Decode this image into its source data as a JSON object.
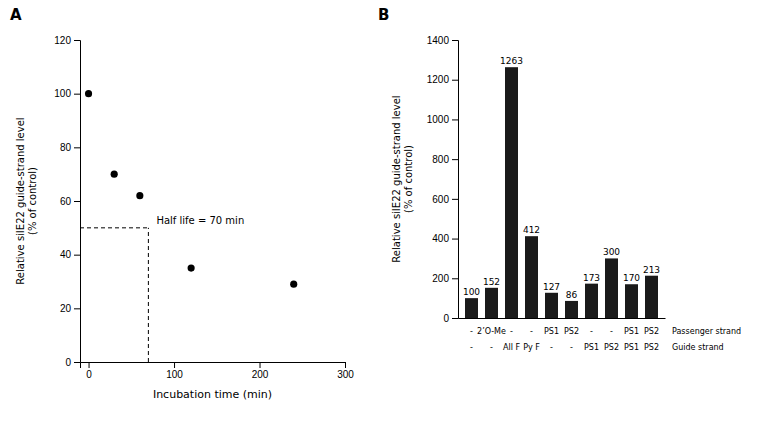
{
  "chart_data": [
    {
      "type": "scatter",
      "title": "A",
      "x": [
        0,
        30,
        60,
        120,
        240
      ],
      "values": [
        100,
        70,
        62,
        35,
        29
      ],
      "xlim": [
        -10,
        300
      ],
      "xticks": [
        0,
        100,
        200,
        300
      ],
      "ylim": [
        0,
        120
      ],
      "yticks": [
        0,
        20,
        40,
        60,
        80,
        100,
        120
      ],
      "xlabel": "Incubation time (min)",
      "ylabel": "Relative siIE22 guide-strand level\n(% of control)",
      "marker": "circle",
      "color": "#000000",
      "annotations": [
        {
          "text": "Half life = 70 min",
          "x": 70,
          "y": 50
        }
      ]
    },
    {
      "type": "bar",
      "title": "B",
      "categories": [
        [
          "-",
          "-"
        ],
        [
          "2’O-Me",
          "-"
        ],
        [
          "-",
          "All F"
        ],
        [
          "-",
          "Py F"
        ],
        [
          "PS1",
          "-"
        ],
        [
          "PS2",
          "-"
        ],
        [
          "-",
          "PS1"
        ],
        [
          "-",
          "PS2"
        ],
        [
          "PS1",
          "PS1"
        ],
        [
          "PS2",
          "PS2"
        ]
      ],
      "category_titles": [
        "Passenger strand",
        "Guide strand"
      ],
      "values": [
        100,
        152,
        1263,
        412,
        127,
        86,
        173,
        300,
        170,
        213
      ],
      "color": "#1a1a1a",
      "ylim": [
        0,
        1400
      ],
      "yticks": [
        0,
        200,
        400,
        600,
        800,
        1000,
        1200,
        1400
      ],
      "ylabel": "Relative siIE22 guide-strand level\n(% of control)",
      "data_labels": true
    }
  ]
}
